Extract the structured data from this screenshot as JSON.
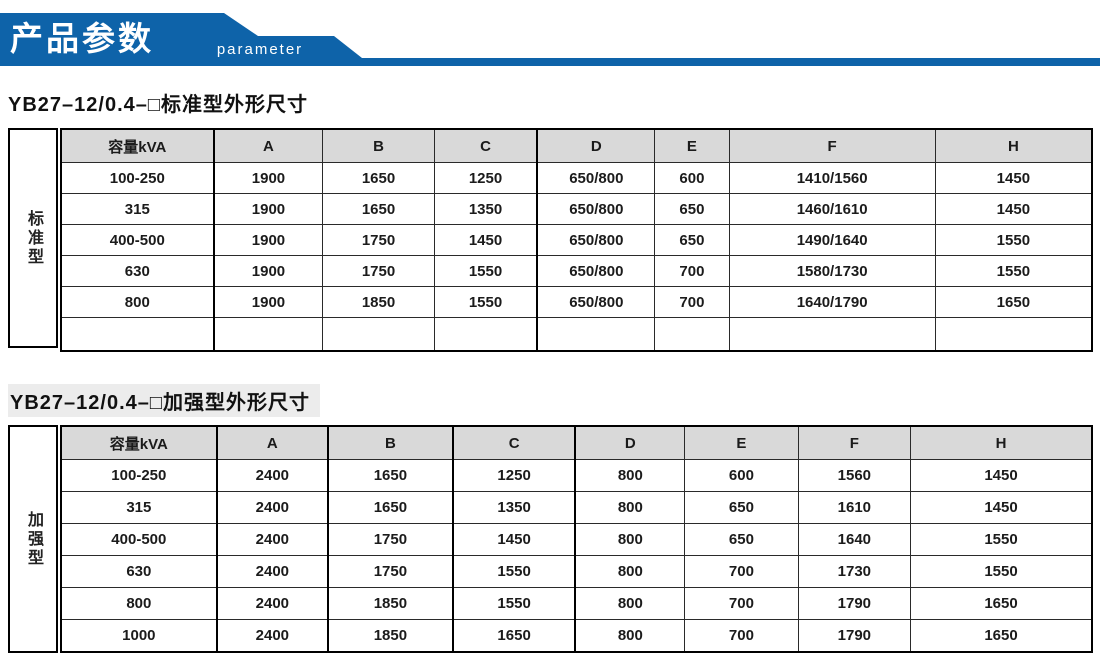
{
  "banner": {
    "title": "产品参数",
    "subtitle": "parameter"
  },
  "colors": {
    "banner_blue": "#0e63a9",
    "table_header_fill": "#d9d9d9"
  },
  "section1": {
    "title": "YB27–12/0.4–□标准型外形尺寸",
    "side_label": "标准型"
  },
  "section2": {
    "title": "YB27–12/0.4–□加强型外形尺寸",
    "side_label": "加强型"
  },
  "tables": [
    {
      "name": "standard-type-dimensions",
      "columns": [
        "容量kVA",
        "A",
        "B",
        "C",
        "D",
        "E",
        "F",
        "H"
      ],
      "rows": [
        [
          "100-250",
          "1900",
          "1650",
          "1250",
          "650/800",
          "600",
          "1410/1560",
          "1450"
        ],
        [
          "315",
          "1900",
          "1650",
          "1350",
          "650/800",
          "650",
          "1460/1610",
          "1450"
        ],
        [
          "400-500",
          "1900",
          "1750",
          "1450",
          "650/800",
          "650",
          "1490/1640",
          "1550"
        ],
        [
          "630",
          "1900",
          "1750",
          "1550",
          "650/800",
          "700",
          "1580/1730",
          "1550"
        ],
        [
          "800",
          "1900",
          "1850",
          "1550",
          "650/800",
          "700",
          "1640/1790",
          "1650"
        ],
        [
          "",
          "",
          "",
          "",
          "",
          "",
          "",
          ""
        ]
      ]
    },
    {
      "name": "reinforced-type-dimensions",
      "columns": [
        "容量kVA",
        "A",
        "B",
        "C",
        "D",
        "E",
        "F",
        "H"
      ],
      "rows": [
        [
          "100-250",
          "2400",
          "1650",
          "1250",
          "800",
          "600",
          "1560",
          "1450"
        ],
        [
          "315",
          "2400",
          "1650",
          "1350",
          "800",
          "650",
          "1610",
          "1450"
        ],
        [
          "400-500",
          "2400",
          "1750",
          "1450",
          "800",
          "650",
          "1640",
          "1550"
        ],
        [
          "630",
          "2400",
          "1750",
          "1550",
          "800",
          "700",
          "1730",
          "1550"
        ],
        [
          "800",
          "2400",
          "1850",
          "1550",
          "800",
          "700",
          "1790",
          "1650"
        ],
        [
          "1000",
          "2400",
          "1850",
          "1650",
          "800",
          "700",
          "1790",
          "1650"
        ]
      ]
    }
  ]
}
